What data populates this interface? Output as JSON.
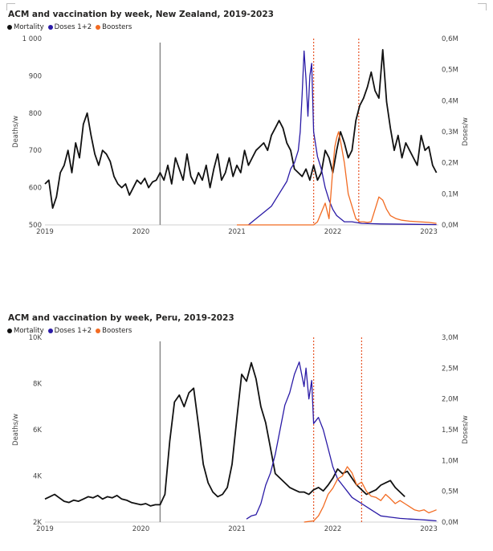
{
  "colors": {
    "mortality": "#111111",
    "doses": "#2a1aa6",
    "boosters": "#f26b22",
    "marker_line": "#8a8a8a",
    "event_line": "#e8572a"
  },
  "chart_data": [
    {
      "type": "line",
      "title": "ACM and vaccination by week, New Zealand, 2019-2023",
      "legend": [
        "Mortality",
        "Doses 1+2",
        "Boosters"
      ],
      "legend_position": "top-left",
      "ylabel": "Deaths/w",
      "y2label": "Doses/w",
      "ylim": [
        500,
        1000
      ],
      "y2lim": [
        0,
        0.6
      ],
      "xlim": [
        2019.0,
        2023.1
      ],
      "y_ticks": [
        "500",
        "600",
        "700",
        "800",
        "900",
        "1 000"
      ],
      "y2_ticks": [
        "0,0M",
        "0,1M",
        "0,2M",
        "0,3M",
        "0,4M",
        "0,5M",
        "0,6M"
      ],
      "x_ticks": [
        "2019",
        "2020",
        "2021",
        "2022",
        "2023"
      ],
      "vertical_markers": [
        2020.2
      ],
      "event_lines": [
        2021.8,
        2022.27
      ],
      "series": [
        {
          "name": "Mortality",
          "x": [
            2019.0,
            2019.04,
            2019.08,
            2019.12,
            2019.16,
            2019.2,
            2019.24,
            2019.28,
            2019.32,
            2019.36,
            2019.4,
            2019.44,
            2019.48,
            2019.52,
            2019.56,
            2019.6,
            2019.64,
            2019.68,
            2019.72,
            2019.76,
            2019.8,
            2019.84,
            2019.88,
            2019.92,
            2019.96,
            2020.0,
            2020.04,
            2020.08,
            2020.12,
            2020.16,
            2020.2,
            2020.24,
            2020.28,
            2020.32,
            2020.36,
            2020.4,
            2020.44,
            2020.48,
            2020.52,
            2020.56,
            2020.6,
            2020.64,
            2020.68,
            2020.72,
            2020.76,
            2020.8,
            2020.84,
            2020.88,
            2020.92,
            2020.96,
            2021.0,
            2021.04,
            2021.08,
            2021.12,
            2021.16,
            2021.2,
            2021.24,
            2021.28,
            2021.32,
            2021.36,
            2021.4,
            2021.44,
            2021.48,
            2021.52,
            2021.56,
            2021.6,
            2021.64,
            2021.68,
            2021.72,
            2021.76,
            2021.8,
            2021.84,
            2021.88,
            2021.92,
            2021.96,
            2022.0,
            2022.04,
            2022.08,
            2022.12,
            2022.16,
            2022.2,
            2022.24,
            2022.28,
            2022.32,
            2022.36,
            2022.4,
            2022.44,
            2022.48,
            2022.52,
            2022.56,
            2022.6,
            2022.64,
            2022.68,
            2022.72,
            2022.76,
            2022.8,
            2022.84,
            2022.88,
            2022.92,
            2022.96,
            2023.0,
            2023.04,
            2023.08
          ],
          "y": [
            610,
            620,
            545,
            575,
            640,
            660,
            700,
            640,
            720,
            680,
            770,
            800,
            740,
            690,
            660,
            700,
            690,
            670,
            630,
            610,
            600,
            610,
            580,
            600,
            620,
            610,
            625,
            600,
            615,
            620,
            640,
            620,
            660,
            610,
            680,
            650,
            620,
            690,
            630,
            610,
            640,
            620,
            660,
            600,
            650,
            690,
            620,
            640,
            680,
            630,
            660,
            640,
            700,
            660,
            680,
            700,
            710,
            720,
            700,
            740,
            760,
            780,
            760,
            720,
            700,
            650,
            640,
            630,
            650,
            620,
            660,
            620,
            640,
            700,
            680,
            640,
            700,
            750,
            720,
            680,
            700,
            780,
            820,
            840,
            870,
            910,
            860,
            840,
            970,
            830,
            760,
            700,
            740,
            680,
            720,
            700,
            680,
            660,
            740,
            700,
            710,
            660,
            640
          ]
        },
        {
          "name": "Doses 1+2",
          "axis": "y2",
          "x": [
            2021.12,
            2021.2,
            2021.28,
            2021.36,
            2021.44,
            2021.52,
            2021.56,
            2021.6,
            2021.64,
            2021.66,
            2021.68,
            2021.7,
            2021.72,
            2021.74,
            2021.76,
            2021.78,
            2021.8,
            2021.84,
            2021.88,
            2021.92,
            2021.96,
            2022.0,
            2022.04,
            2022.08,
            2022.12,
            2022.2,
            2022.3,
            2022.5,
            2022.8,
            2023.08
          ],
          "y": [
            0.0,
            0.02,
            0.04,
            0.06,
            0.1,
            0.14,
            0.18,
            0.2,
            0.24,
            0.3,
            0.42,
            0.56,
            0.47,
            0.35,
            0.48,
            0.52,
            0.3,
            0.22,
            0.18,
            0.12,
            0.08,
            0.05,
            0.03,
            0.02,
            0.01,
            0.01,
            0.005,
            0.003,
            0.002,
            0.001
          ]
        },
        {
          "name": "Boosters",
          "axis": "y2",
          "x": [
            2021.0,
            2021.8,
            2021.84,
            2021.88,
            2021.92,
            2021.96,
            2022.0,
            2022.02,
            2022.04,
            2022.06,
            2022.08,
            2022.12,
            2022.16,
            2022.2,
            2022.24,
            2022.28,
            2022.32,
            2022.36,
            2022.4,
            2022.44,
            2022.48,
            2022.52,
            2022.56,
            2022.6,
            2022.66,
            2022.72,
            2022.8,
            2022.9,
            2023.0,
            2023.08
          ],
          "y": [
            0.0,
            0.0,
            0.01,
            0.04,
            0.07,
            0.02,
            0.18,
            0.25,
            0.28,
            0.3,
            0.27,
            0.2,
            0.1,
            0.06,
            0.02,
            0.01,
            0.01,
            0.008,
            0.01,
            0.05,
            0.09,
            0.08,
            0.05,
            0.03,
            0.02,
            0.015,
            0.012,
            0.01,
            0.008,
            0.005
          ]
        }
      ]
    },
    {
      "type": "line",
      "title": "ACM and vaccination by week, Peru, 2019-2023",
      "legend": [
        "Mortality",
        "Doses 1+2",
        "Boosters"
      ],
      "legend_position": "top-left",
      "ylabel": "Deaths/w",
      "y2label": "Doses/w",
      "ylim": [
        2000,
        10000
      ],
      "y2lim": [
        0,
        3.0
      ],
      "xlim": [
        2019.0,
        2023.1
      ],
      "y_ticks": [
        "2K",
        "4K",
        "6K",
        "8K",
        "10K"
      ],
      "y2_ticks": [
        "0,0M",
        "0,5M",
        "1,0M",
        "1,5M",
        "2,0M",
        "2,5M",
        "3,0M"
      ],
      "x_ticks": [
        "2019",
        "2020",
        "2021",
        "2022",
        "2023"
      ],
      "vertical_markers": [
        2020.2
      ],
      "event_lines": [
        2021.8,
        2022.3
      ],
      "series": [
        {
          "name": "Mortality",
          "x": [
            2019.0,
            2019.05,
            2019.1,
            2019.15,
            2019.2,
            2019.25,
            2019.3,
            2019.35,
            2019.4,
            2019.45,
            2019.5,
            2019.55,
            2019.6,
            2019.65,
            2019.7,
            2019.75,
            2019.8,
            2019.85,
            2019.9,
            2019.95,
            2020.0,
            2020.05,
            2020.1,
            2020.15,
            2020.2,
            2020.25,
            2020.3,
            2020.35,
            2020.4,
            2020.45,
            2020.5,
            2020.55,
            2020.6,
            2020.65,
            2020.7,
            2020.75,
            2020.8,
            2020.85,
            2020.9,
            2020.95,
            2021.0,
            2021.05,
            2021.1,
            2021.15,
            2021.2,
            2021.25,
            2021.3,
            2021.35,
            2021.4,
            2021.45,
            2021.5,
            2021.55,
            2021.6,
            2021.65,
            2021.7,
            2021.75,
            2021.8,
            2021.85,
            2021.9,
            2021.95,
            2022.0,
            2022.05,
            2022.1,
            2022.15,
            2022.2,
            2022.25,
            2022.3,
            2022.35,
            2022.4,
            2022.45,
            2022.5,
            2022.55,
            2022.6,
            2022.65,
            2022.7,
            2022.75
          ],
          "y": [
            3000,
            3100,
            3200,
            3050,
            2900,
            2850,
            2950,
            2900,
            3000,
            3100,
            3050,
            3150,
            3000,
            3100,
            3050,
            3150,
            3000,
            2950,
            2850,
            2800,
            2750,
            2800,
            2700,
            2750,
            2750,
            3200,
            5500,
            7200,
            7500,
            7000,
            7600,
            7800,
            6200,
            4500,
            3700,
            3300,
            3100,
            3200,
            3500,
            4500,
            6500,
            8400,
            8100,
            8900,
            8200,
            7000,
            6300,
            5200,
            4100,
            3900,
            3700,
            3500,
            3400,
            3300,
            3300,
            3200,
            3400,
            3500,
            3350,
            3600,
            3900,
            4300,
            4100,
            4200,
            3900,
            3600,
            3400,
            3200,
            3300,
            3400,
            3600,
            3700,
            3800,
            3500,
            3300,
            3100
          ]
        },
        {
          "name": "Doses 1+2",
          "axis": "y2",
          "x": [
            2021.1,
            2021.15,
            2021.2,
            2021.25,
            2021.3,
            2021.35,
            2021.4,
            2021.45,
            2021.5,
            2021.55,
            2021.6,
            2021.65,
            2021.7,
            2021.72,
            2021.75,
            2021.78,
            2021.8,
            2021.85,
            2021.9,
            2021.95,
            2022.0,
            2022.05,
            2022.1,
            2022.15,
            2022.2,
            2022.25,
            2022.3,
            2022.4,
            2022.5,
            2022.6,
            2022.7,
            2022.8,
            2022.9,
            2023.0,
            2023.08
          ],
          "y": [
            0.05,
            0.1,
            0.12,
            0.3,
            0.6,
            0.8,
            1.1,
            1.5,
            1.9,
            2.1,
            2.4,
            2.6,
            2.2,
            2.5,
            2.0,
            2.3,
            1.6,
            1.7,
            1.5,
            1.2,
            0.9,
            0.7,
            0.6,
            0.5,
            0.4,
            0.35,
            0.3,
            0.2,
            0.1,
            0.08,
            0.06,
            0.05,
            0.04,
            0.03,
            0.02
          ]
        },
        {
          "name": "Boosters",
          "axis": "y2",
          "x": [
            2021.7,
            2021.8,
            2021.85,
            2021.9,
            2021.95,
            2022.0,
            2022.05,
            2022.1,
            2022.15,
            2022.2,
            2022.25,
            2022.3,
            2022.35,
            2022.4,
            2022.45,
            2022.5,
            2022.55,
            2022.6,
            2022.65,
            2022.7,
            2022.75,
            2022.8,
            2022.85,
            2022.9,
            2022.95,
            2023.0,
            2023.05,
            2023.08
          ],
          "y": [
            0.0,
            0.02,
            0.1,
            0.25,
            0.45,
            0.55,
            0.7,
            0.75,
            0.9,
            0.8,
            0.6,
            0.65,
            0.5,
            0.42,
            0.4,
            0.35,
            0.45,
            0.38,
            0.3,
            0.35,
            0.3,
            0.25,
            0.2,
            0.18,
            0.2,
            0.15,
            0.18,
            0.2
          ]
        }
      ]
    }
  ]
}
